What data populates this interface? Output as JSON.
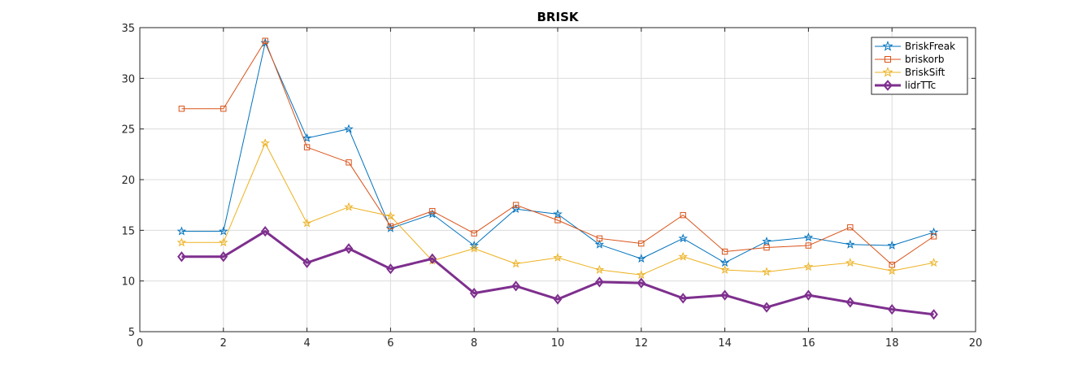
{
  "chart_data": {
    "type": "line",
    "title": "BRISK",
    "xlabel": "",
    "ylabel": "",
    "xlim": [
      0,
      20
    ],
    "ylim": [
      5,
      35
    ],
    "xticks": [
      0,
      2,
      4,
      6,
      8,
      10,
      12,
      14,
      16,
      18,
      20
    ],
    "yticks": [
      5,
      10,
      15,
      20,
      25,
      30,
      35
    ],
    "grid": true,
    "legend_position": "top-right",
    "x": [
      1,
      2,
      3,
      4,
      5,
      6,
      7,
      8,
      9,
      10,
      11,
      12,
      13,
      14,
      15,
      16,
      17,
      18,
      19
    ],
    "series": [
      {
        "name": "BriskFreak",
        "color": "#0072BD",
        "marker": "star",
        "values": [
          14.9,
          14.9,
          33.5,
          24.1,
          25.0,
          15.2,
          16.6,
          13.5,
          17.1,
          16.6,
          13.6,
          12.2,
          14.2,
          11.8,
          13.9,
          14.3,
          13.6,
          13.5,
          14.8
        ]
      },
      {
        "name": "briskorb",
        "color": "#D95319",
        "marker": "square",
        "values": [
          27.0,
          27.0,
          33.7,
          23.2,
          21.7,
          15.4,
          16.9,
          14.7,
          17.5,
          16.0,
          14.2,
          13.7,
          16.5,
          12.9,
          13.3,
          13.5,
          15.3,
          11.6,
          14.4
        ]
      },
      {
        "name": "BriskSift",
        "color": "#EDB120",
        "marker": "star",
        "values": [
          13.8,
          13.8,
          23.6,
          15.7,
          17.3,
          16.4,
          12.0,
          13.2,
          11.7,
          12.3,
          11.1,
          10.6,
          12.4,
          11.1,
          10.9,
          11.4,
          11.8,
          11.0,
          11.8
        ]
      },
      {
        "name": "lidrTTc",
        "color": "#7E2F8E",
        "marker": "diamond",
        "values": [
          12.4,
          12.4,
          14.9,
          11.8,
          13.2,
          11.2,
          12.2,
          8.8,
          9.5,
          8.2,
          9.9,
          9.8,
          8.3,
          8.6,
          7.4,
          8.6,
          7.9,
          7.2,
          6.7
        ]
      }
    ]
  }
}
